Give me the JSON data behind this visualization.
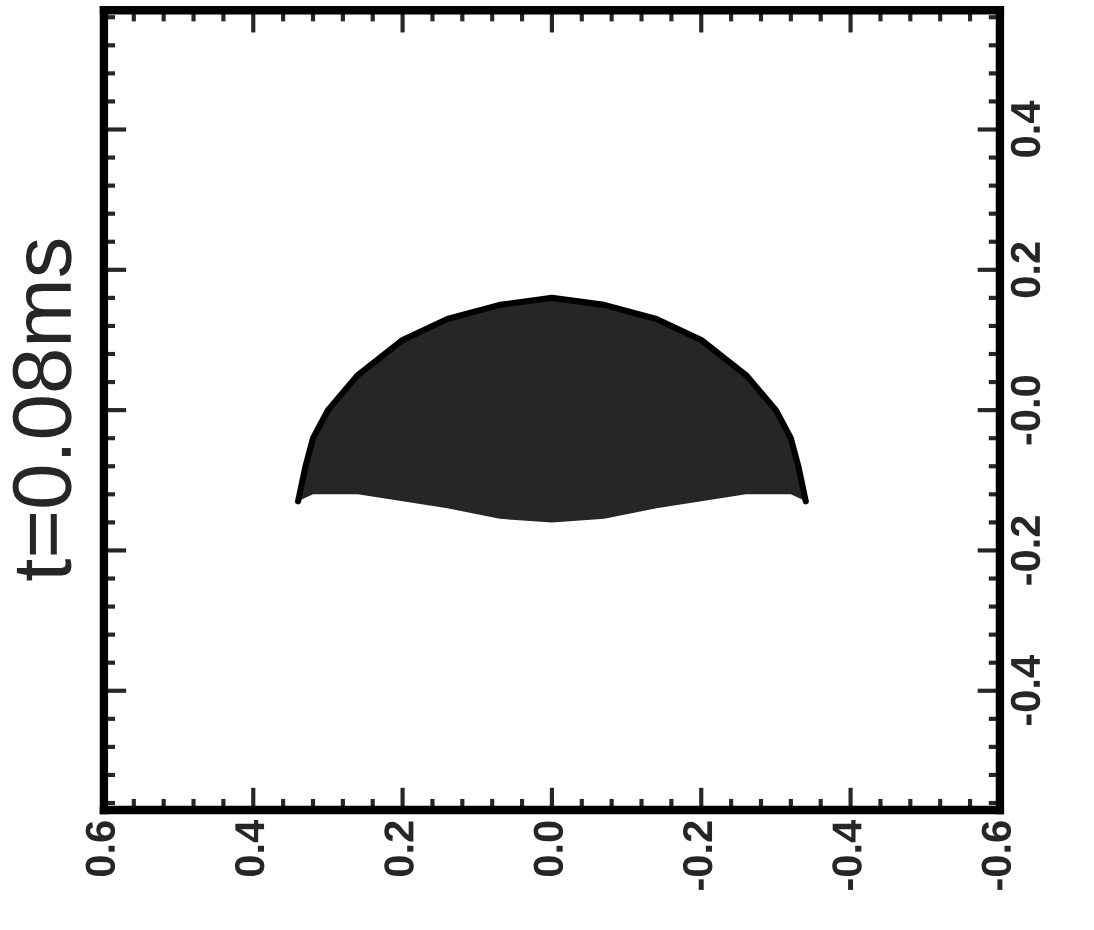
{
  "chart_data": {
    "type": "line",
    "title": "t=0.08ms",
    "x": [
      0.34,
      0.33,
      0.32,
      0.3,
      0.26,
      0.2,
      0.14,
      0.07,
      0.0,
      -0.07,
      -0.14,
      -0.2,
      -0.26,
      -0.3,
      -0.32,
      -0.33,
      -0.34
    ],
    "series": [
      {
        "color": "#000000",
        "values": [
          -0.13,
          -0.08,
          -0.04,
          0.0,
          0.05,
          0.1,
          0.13,
          0.15,
          0.16,
          0.15,
          0.13,
          0.1,
          0.05,
          0.0,
          -0.04,
          -0.08,
          -0.13
        ],
        "upper": [
          -0.13,
          -0.08,
          -0.04,
          0.0,
          0.05,
          0.1,
          0.13,
          0.15,
          0.16,
          0.15,
          0.13,
          0.1,
          0.05,
          0.0,
          -0.04,
          -0.08,
          -0.13
        ],
        "lower": [
          -0.13,
          -0.125,
          -0.12,
          -0.12,
          -0.12,
          -0.13,
          -0.14,
          -0.155,
          -0.16,
          -0.155,
          -0.14,
          -0.13,
          -0.12,
          -0.12,
          -0.12,
          -0.125,
          -0.13
        ]
      }
    ],
    "xlim": [
      0.6,
      -0.6
    ],
    "ylim": [
      -0.57,
      0.57
    ],
    "xticks": [
      0.6,
      0.4,
      0.2,
      {
        "value": 0.0,
        "label": "0.0"
      },
      -0.2,
      -0.4,
      -0.6
    ],
    "yticks": [
      0.4,
      0.2,
      {
        "value": 0.0,
        "label": "-0.0"
      },
      -0.2,
      -0.4
    ],
    "grid": false,
    "legend": false,
    "marker": "none",
    "line_style": "solid"
  }
}
